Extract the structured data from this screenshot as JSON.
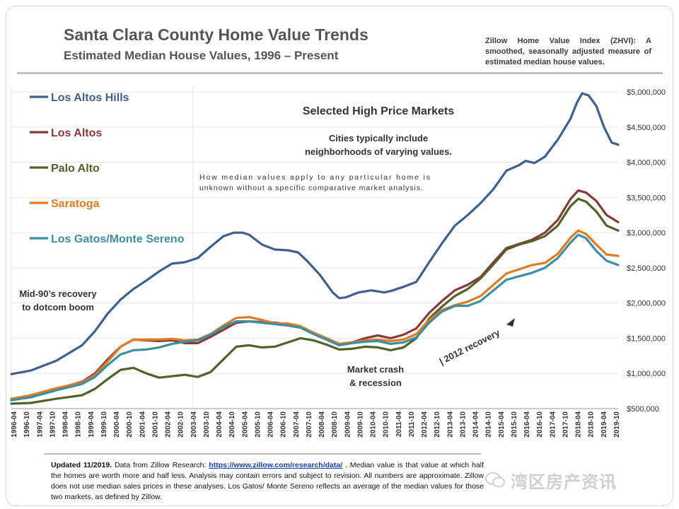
{
  "title": "Santa Clara County Home Value Trends",
  "subtitle": "Estimated Median House Values, 1996 – Present",
  "zhvi_note": "Zillow Home Value Index (ZHVI): A smoothed, seasonally adjusted measure of estimated median house values.",
  "footer": {
    "updated": "Updated 11/2019.",
    "text_before_link": " Data from Zillow Research: ",
    "link": "https://www.zillow.com/research/data/",
    "text_after_link": " . Median value is that value at which half the homes are worth more and half less. Analysis may contain errors and subject to revision. All numbers are approximate. Zillow does not use median sales prices in these analyses. Los Gatos/ Monte Sereno reflects an average of the median values for those two markets, as defined by Zillow."
  },
  "watermark": "湾区房产资讯",
  "colors": {
    "los_altos_hills": "#3f5f8f",
    "los_altos": "#8b3838",
    "palo_alto": "#4f6228",
    "saratoga": "#e07b22",
    "los_gatos": "#3c8ea5"
  },
  "chart_data": {
    "type": "line",
    "title": "Selected High Price Markets",
    "note_cities": "Cities typically include neighborhoods of varying values.",
    "note_cities_lines": [
      "Cities typically include",
      "neighborhoods of varying values."
    ],
    "note_median": "How median values apply to any particular home is unknown without a specific comparative market analysis.",
    "note_median_lines": [
      "How median values apply to any particular home is",
      "unknown without a specific comparative market analysis."
    ],
    "annotations": {
      "dotcom": [
        "Mid-90’s recovery",
        "to dotcom boom"
      ],
      "crash": [
        "Market crash",
        "& recession"
      ],
      "recovery": "| 2012 recovery"
    },
    "xlabel": "",
    "ylabel": "",
    "ylim": [
      500000,
      5000000
    ],
    "y_ticks": [
      500000,
      1000000,
      1500000,
      2000000,
      2500000,
      3000000,
      3500000,
      4000000,
      4500000,
      5000000
    ],
    "y_tick_labels": [
      "$500,000",
      "$1,000,000",
      "$1,500,000",
      "$2,000,000",
      "$2,500,000",
      "$3,000,000",
      "$3,500,000",
      "$4,000,000",
      "$4,500,000",
      "$5,000,000"
    ],
    "x_tick_labels": [
      "1996-04",
      "1996-10",
      "1997-04",
      "1997-10",
      "1998-04",
      "1998-10",
      "1999-04",
      "1999-10",
      "2000-04",
      "2000-10",
      "2001-04",
      "2001-10",
      "2002-04",
      "2002-10",
      "2003-04",
      "2003-10",
      "2004-04",
      "2004-10",
      "2005-04",
      "2005-10",
      "2006-04",
      "2006-10",
      "2007-04",
      "2007-10",
      "2008-04",
      "2008-10",
      "2009-04",
      "2009-10",
      "2010-04",
      "2010-10",
      "2011-04",
      "2011-10",
      "2012-04",
      "2012-10",
      "2013-04",
      "2013-10",
      "2014-04",
      "2014-10",
      "2015-04",
      "2015-10",
      "2016-04",
      "2016-10",
      "2017-04",
      "2017-10",
      "2018-04",
      "2018-10",
      "2019-04",
      "2019-10"
    ],
    "legend": "left",
    "series": [
      {
        "name": "Los Altos Hills",
        "color": "#3f5f8f",
        "points": [
          [
            1996.25,
            990000
          ],
          [
            1997.0,
            1040000
          ],
          [
            1998.0,
            1180000
          ],
          [
            1999.0,
            1400000
          ],
          [
            1999.5,
            1600000
          ],
          [
            2000.0,
            1850000
          ],
          [
            2000.5,
            2050000
          ],
          [
            2001.0,
            2200000
          ],
          [
            2001.5,
            2320000
          ],
          [
            2002.0,
            2450000
          ],
          [
            2002.5,
            2560000
          ],
          [
            2003.0,
            2580000
          ],
          [
            2003.5,
            2640000
          ],
          [
            2004.0,
            2800000
          ],
          [
            2004.5,
            2950000
          ],
          [
            2004.9,
            3000000
          ],
          [
            2005.25,
            3000000
          ],
          [
            2005.5,
            2970000
          ],
          [
            2006.0,
            2830000
          ],
          [
            2006.5,
            2760000
          ],
          [
            2007.0,
            2750000
          ],
          [
            2007.4,
            2720000
          ],
          [
            2007.75,
            2600000
          ],
          [
            2008.25,
            2400000
          ],
          [
            2008.75,
            2150000
          ],
          [
            2009.0,
            2070000
          ],
          [
            2009.25,
            2080000
          ],
          [
            2009.75,
            2150000
          ],
          [
            2010.25,
            2180000
          ],
          [
            2010.75,
            2150000
          ],
          [
            2011.0,
            2170000
          ],
          [
            2011.5,
            2230000
          ],
          [
            2012.0,
            2300000
          ],
          [
            2012.5,
            2580000
          ],
          [
            2013.0,
            2850000
          ],
          [
            2013.5,
            3100000
          ],
          [
            2014.0,
            3250000
          ],
          [
            2014.5,
            3420000
          ],
          [
            2015.0,
            3620000
          ],
          [
            2015.5,
            3880000
          ],
          [
            2016.0,
            3960000
          ],
          [
            2016.25,
            4020000
          ],
          [
            2016.6,
            3990000
          ],
          [
            2017.0,
            4080000
          ],
          [
            2017.5,
            4320000
          ],
          [
            2018.0,
            4620000
          ],
          [
            2018.25,
            4850000
          ],
          [
            2018.45,
            4980000
          ],
          [
            2018.7,
            4950000
          ],
          [
            2019.0,
            4800000
          ],
          [
            2019.3,
            4500000
          ],
          [
            2019.6,
            4280000
          ],
          [
            2019.85,
            4250000
          ]
        ]
      },
      {
        "name": "Los Altos",
        "color": "#8b3838",
        "points": [
          [
            1996.25,
            620000
          ],
          [
            1997.0,
            670000
          ],
          [
            1998.0,
            780000
          ],
          [
            1999.0,
            880000
          ],
          [
            1999.5,
            1000000
          ],
          [
            2000.0,
            1200000
          ],
          [
            2000.5,
            1380000
          ],
          [
            2001.0,
            1480000
          ],
          [
            2001.5,
            1470000
          ],
          [
            2002.0,
            1460000
          ],
          [
            2002.5,
            1470000
          ],
          [
            2003.0,
            1430000
          ],
          [
            2003.5,
            1430000
          ],
          [
            2004.0,
            1520000
          ],
          [
            2004.5,
            1620000
          ],
          [
            2005.0,
            1720000
          ],
          [
            2005.5,
            1740000
          ],
          [
            2006.0,
            1730000
          ],
          [
            2006.5,
            1720000
          ],
          [
            2007.0,
            1700000
          ],
          [
            2007.5,
            1650000
          ],
          [
            2008.0,
            1560000
          ],
          [
            2008.5,
            1500000
          ],
          [
            2009.0,
            1420000
          ],
          [
            2009.5,
            1440000
          ],
          [
            2010.0,
            1500000
          ],
          [
            2010.5,
            1540000
          ],
          [
            2011.0,
            1500000
          ],
          [
            2011.5,
            1550000
          ],
          [
            2012.0,
            1640000
          ],
          [
            2012.5,
            1860000
          ],
          [
            2013.0,
            2030000
          ],
          [
            2013.5,
            2180000
          ],
          [
            2014.0,
            2260000
          ],
          [
            2014.5,
            2370000
          ],
          [
            2015.0,
            2580000
          ],
          [
            2015.5,
            2780000
          ],
          [
            2016.0,
            2840000
          ],
          [
            2016.5,
            2900000
          ],
          [
            2017.0,
            3000000
          ],
          [
            2017.5,
            3180000
          ],
          [
            2018.0,
            3480000
          ],
          [
            2018.3,
            3600000
          ],
          [
            2018.6,
            3570000
          ],
          [
            2019.0,
            3450000
          ],
          [
            2019.4,
            3250000
          ],
          [
            2019.85,
            3150000
          ]
        ]
      },
      {
        "name": "Palo Alto",
        "color": "#4f6228",
        "points": [
          [
            1996.25,
            570000
          ],
          [
            1997.0,
            580000
          ],
          [
            1998.0,
            640000
          ],
          [
            1999.0,
            690000
          ],
          [
            1999.5,
            780000
          ],
          [
            2000.0,
            920000
          ],
          [
            2000.5,
            1050000
          ],
          [
            2001.0,
            1080000
          ],
          [
            2001.5,
            1000000
          ],
          [
            2002.0,
            940000
          ],
          [
            2002.5,
            960000
          ],
          [
            2003.0,
            980000
          ],
          [
            2003.5,
            950000
          ],
          [
            2004.0,
            1020000
          ],
          [
            2004.5,
            1200000
          ],
          [
            2005.0,
            1380000
          ],
          [
            2005.5,
            1400000
          ],
          [
            2006.0,
            1370000
          ],
          [
            2006.5,
            1380000
          ],
          [
            2007.0,
            1440000
          ],
          [
            2007.5,
            1500000
          ],
          [
            2008.0,
            1470000
          ],
          [
            2008.5,
            1410000
          ],
          [
            2009.0,
            1340000
          ],
          [
            2009.5,
            1350000
          ],
          [
            2010.0,
            1380000
          ],
          [
            2010.5,
            1370000
          ],
          [
            2011.0,
            1330000
          ],
          [
            2011.5,
            1370000
          ],
          [
            2012.0,
            1500000
          ],
          [
            2012.5,
            1780000
          ],
          [
            2013.0,
            1950000
          ],
          [
            2013.5,
            2100000
          ],
          [
            2014.0,
            2200000
          ],
          [
            2014.5,
            2350000
          ],
          [
            2015.0,
            2550000
          ],
          [
            2015.5,
            2760000
          ],
          [
            2016.0,
            2830000
          ],
          [
            2016.5,
            2880000
          ],
          [
            2017.0,
            2950000
          ],
          [
            2017.5,
            3100000
          ],
          [
            2018.0,
            3380000
          ],
          [
            2018.3,
            3480000
          ],
          [
            2018.6,
            3440000
          ],
          [
            2019.0,
            3300000
          ],
          [
            2019.4,
            3100000
          ],
          [
            2019.85,
            3030000
          ]
        ]
      },
      {
        "name": "Saratoga",
        "color": "#e07b22",
        "points": [
          [
            1996.25,
            640000
          ],
          [
            1997.0,
            690000
          ],
          [
            1998.0,
            790000
          ],
          [
            1999.0,
            870000
          ],
          [
            1999.5,
            980000
          ],
          [
            2000.0,
            1170000
          ],
          [
            2000.5,
            1380000
          ],
          [
            2001.0,
            1480000
          ],
          [
            2001.5,
            1480000
          ],
          [
            2002.0,
            1480000
          ],
          [
            2002.5,
            1490000
          ],
          [
            2003.0,
            1470000
          ],
          [
            2003.5,
            1480000
          ],
          [
            2004.0,
            1560000
          ],
          [
            2004.5,
            1680000
          ],
          [
            2005.0,
            1790000
          ],
          [
            2005.5,
            1800000
          ],
          [
            2006.0,
            1760000
          ],
          [
            2006.5,
            1710000
          ],
          [
            2007.0,
            1710000
          ],
          [
            2007.5,
            1670000
          ],
          [
            2008.0,
            1580000
          ],
          [
            2008.5,
            1500000
          ],
          [
            2009.0,
            1420000
          ],
          [
            2009.5,
            1440000
          ],
          [
            2010.0,
            1470000
          ],
          [
            2010.5,
            1480000
          ],
          [
            2011.0,
            1460000
          ],
          [
            2011.5,
            1480000
          ],
          [
            2012.0,
            1560000
          ],
          [
            2012.5,
            1760000
          ],
          [
            2013.0,
            1900000
          ],
          [
            2013.5,
            1970000
          ],
          [
            2014.0,
            2020000
          ],
          [
            2014.5,
            2100000
          ],
          [
            2015.0,
            2260000
          ],
          [
            2015.5,
            2420000
          ],
          [
            2016.0,
            2480000
          ],
          [
            2016.5,
            2540000
          ],
          [
            2017.0,
            2570000
          ],
          [
            2017.5,
            2700000
          ],
          [
            2018.0,
            2930000
          ],
          [
            2018.3,
            3030000
          ],
          [
            2018.6,
            2980000
          ],
          [
            2019.0,
            2830000
          ],
          [
            2019.4,
            2690000
          ],
          [
            2019.85,
            2670000
          ]
        ]
      },
      {
        "name": "Los Gatos/Monte Sereno",
        "color": "#3c8ea5",
        "points": [
          [
            1996.25,
            620000
          ],
          [
            1997.0,
            660000
          ],
          [
            1998.0,
            760000
          ],
          [
            1999.0,
            850000
          ],
          [
            1999.5,
            950000
          ],
          [
            2000.0,
            1120000
          ],
          [
            2000.5,
            1270000
          ],
          [
            2001.0,
            1330000
          ],
          [
            2001.5,
            1340000
          ],
          [
            2002.0,
            1370000
          ],
          [
            2002.5,
            1420000
          ],
          [
            2003.0,
            1450000
          ],
          [
            2003.5,
            1470000
          ],
          [
            2004.0,
            1550000
          ],
          [
            2004.5,
            1660000
          ],
          [
            2005.0,
            1740000
          ],
          [
            2005.5,
            1740000
          ],
          [
            2006.0,
            1720000
          ],
          [
            2006.5,
            1700000
          ],
          [
            2007.0,
            1680000
          ],
          [
            2007.5,
            1650000
          ],
          [
            2008.0,
            1560000
          ],
          [
            2008.5,
            1480000
          ],
          [
            2009.0,
            1400000
          ],
          [
            2009.5,
            1430000
          ],
          [
            2010.0,
            1450000
          ],
          [
            2010.5,
            1460000
          ],
          [
            2011.0,
            1420000
          ],
          [
            2011.5,
            1440000
          ],
          [
            2012.0,
            1510000
          ],
          [
            2012.5,
            1720000
          ],
          [
            2013.0,
            1880000
          ],
          [
            2013.5,
            1960000
          ],
          [
            2014.0,
            1960000
          ],
          [
            2014.5,
            2030000
          ],
          [
            2015.0,
            2180000
          ],
          [
            2015.5,
            2330000
          ],
          [
            2016.0,
            2380000
          ],
          [
            2016.5,
            2430000
          ],
          [
            2017.0,
            2500000
          ],
          [
            2017.5,
            2640000
          ],
          [
            2018.0,
            2860000
          ],
          [
            2018.3,
            2970000
          ],
          [
            2018.6,
            2920000
          ],
          [
            2019.0,
            2740000
          ],
          [
            2019.4,
            2600000
          ],
          [
            2019.85,
            2540000
          ]
        ]
      }
    ]
  }
}
